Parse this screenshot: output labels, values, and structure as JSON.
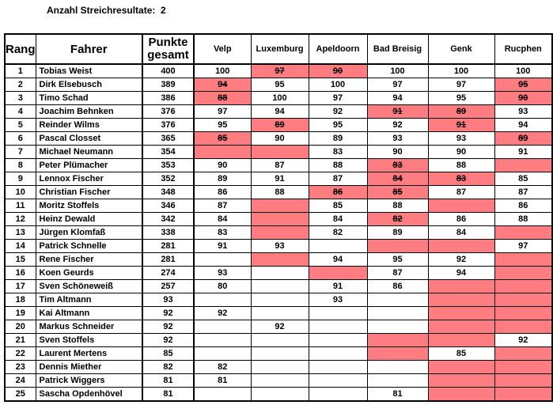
{
  "header": {
    "label": "Anzahl Streichresultate:",
    "value": "2"
  },
  "colors": {
    "highlight": "#FF7C80",
    "border": "#000000",
    "text": "#000000",
    "background": "#FFFFFF"
  },
  "table": {
    "columns": [
      "Rang",
      "Fahrer",
      "Punkte gesamt",
      "Velp",
      "Luxemburg",
      "Apeldoorn",
      "Bad Breisig",
      "Genk",
      "Rucphen"
    ],
    "legend": {
      "ok": "counted result",
      "drop": "dropped result (red, strikethrough)",
      "miss": "missing result (red, empty)",
      "none": "no result (white, empty)"
    },
    "rows": [
      {
        "rang": "1",
        "fahrer": "Tobias Weist",
        "punkte": "400",
        "results": [
          {
            "v": "100",
            "s": "ok"
          },
          {
            "v": "97",
            "s": "drop"
          },
          {
            "v": "90",
            "s": "drop"
          },
          {
            "v": "100",
            "s": "ok"
          },
          {
            "v": "100",
            "s": "ok"
          },
          {
            "v": "100",
            "s": "ok"
          }
        ]
      },
      {
        "rang": "2",
        "fahrer": "Dirk Elsebusch",
        "punkte": "389",
        "results": [
          {
            "v": "94",
            "s": "drop"
          },
          {
            "v": "95",
            "s": "ok"
          },
          {
            "v": "100",
            "s": "ok"
          },
          {
            "v": "97",
            "s": "ok"
          },
          {
            "v": "97",
            "s": "ok"
          },
          {
            "v": "95",
            "s": "drop"
          }
        ]
      },
      {
        "rang": "3",
        "fahrer": "Timo Schad",
        "punkte": "386",
        "results": [
          {
            "v": "88",
            "s": "drop"
          },
          {
            "v": "100",
            "s": "ok"
          },
          {
            "v": "97",
            "s": "ok"
          },
          {
            "v": "94",
            "s": "ok"
          },
          {
            "v": "95",
            "s": "ok"
          },
          {
            "v": "90",
            "s": "drop"
          }
        ]
      },
      {
        "rang": "4",
        "fahrer": "Joachim Behnken",
        "punkte": "376",
        "results": [
          {
            "v": "97",
            "s": "ok"
          },
          {
            "v": "94",
            "s": "ok"
          },
          {
            "v": "92",
            "s": "ok"
          },
          {
            "v": "91",
            "s": "drop"
          },
          {
            "v": "89",
            "s": "drop"
          },
          {
            "v": "93",
            "s": "ok"
          }
        ]
      },
      {
        "rang": "5",
        "fahrer": "Reinder Wilms",
        "punkte": "376",
        "results": [
          {
            "v": "95",
            "s": "ok"
          },
          {
            "v": "89",
            "s": "drop"
          },
          {
            "v": "95",
            "s": "ok"
          },
          {
            "v": "92",
            "s": "ok"
          },
          {
            "v": "91",
            "s": "drop"
          },
          {
            "v": "94",
            "s": "ok"
          }
        ]
      },
      {
        "rang": "6",
        "fahrer": "Pascal Closset",
        "punkte": "365",
        "results": [
          {
            "v": "85",
            "s": "drop"
          },
          {
            "v": "90",
            "s": "ok"
          },
          {
            "v": "89",
            "s": "ok"
          },
          {
            "v": "93",
            "s": "ok"
          },
          {
            "v": "93",
            "s": "ok"
          },
          {
            "v": "89",
            "s": "drop"
          }
        ]
      },
      {
        "rang": "7",
        "fahrer": "Michael Neumann",
        "punkte": "354",
        "results": [
          {
            "v": "",
            "s": "miss"
          },
          {
            "v": "",
            "s": "miss"
          },
          {
            "v": "83",
            "s": "ok"
          },
          {
            "v": "90",
            "s": "ok"
          },
          {
            "v": "90",
            "s": "ok"
          },
          {
            "v": "91",
            "s": "ok"
          }
        ]
      },
      {
        "rang": "8",
        "fahrer": "Peter Plümacher",
        "punkte": "353",
        "results": [
          {
            "v": "90",
            "s": "ok"
          },
          {
            "v": "87",
            "s": "ok"
          },
          {
            "v": "88",
            "s": "ok"
          },
          {
            "v": "83",
            "s": "drop"
          },
          {
            "v": "88",
            "s": "ok"
          },
          {
            "v": "",
            "s": "miss"
          }
        ]
      },
      {
        "rang": "9",
        "fahrer": "Lennox Fischer",
        "punkte": "352",
        "results": [
          {
            "v": "89",
            "s": "ok"
          },
          {
            "v": "91",
            "s": "ok"
          },
          {
            "v": "87",
            "s": "ok"
          },
          {
            "v": "84",
            "s": "drop"
          },
          {
            "v": "83",
            "s": "drop"
          },
          {
            "v": "85",
            "s": "ok"
          }
        ]
      },
      {
        "rang": "10",
        "fahrer": "Christian Fischer",
        "punkte": "348",
        "results": [
          {
            "v": "86",
            "s": "ok"
          },
          {
            "v": "88",
            "s": "ok"
          },
          {
            "v": "86",
            "s": "drop"
          },
          {
            "v": "85",
            "s": "drop"
          },
          {
            "v": "87",
            "s": "ok"
          },
          {
            "v": "87",
            "s": "ok"
          }
        ]
      },
      {
        "rang": "11",
        "fahrer": "Moritz Stoffels",
        "punkte": "346",
        "results": [
          {
            "v": "87",
            "s": "ok"
          },
          {
            "v": "",
            "s": "miss"
          },
          {
            "v": "85",
            "s": "ok"
          },
          {
            "v": "88",
            "s": "ok"
          },
          {
            "v": "",
            "s": "miss"
          },
          {
            "v": "86",
            "s": "ok"
          }
        ]
      },
      {
        "rang": "12",
        "fahrer": "Heinz Dewald",
        "punkte": "342",
        "results": [
          {
            "v": "84",
            "s": "ok"
          },
          {
            "v": "",
            "s": "miss"
          },
          {
            "v": "84",
            "s": "ok"
          },
          {
            "v": "82",
            "s": "drop"
          },
          {
            "v": "86",
            "s": "ok"
          },
          {
            "v": "88",
            "s": "ok"
          }
        ]
      },
      {
        "rang": "13",
        "fahrer": "Jürgen Klomfaß",
        "punkte": "338",
        "results": [
          {
            "v": "83",
            "s": "ok"
          },
          {
            "v": "",
            "s": "miss"
          },
          {
            "v": "82",
            "s": "ok"
          },
          {
            "v": "89",
            "s": "ok"
          },
          {
            "v": "84",
            "s": "ok"
          },
          {
            "v": "",
            "s": "miss"
          }
        ]
      },
      {
        "rang": "14",
        "fahrer": "Patrick Schnelle",
        "punkte": "281",
        "results": [
          {
            "v": "91",
            "s": "ok"
          },
          {
            "v": "93",
            "s": "ok"
          },
          {
            "v": "",
            "s": "none"
          },
          {
            "v": "",
            "s": "miss"
          },
          {
            "v": "",
            "s": "miss"
          },
          {
            "v": "97",
            "s": "ok"
          }
        ]
      },
      {
        "rang": "15",
        "fahrer": "Rene Fischer",
        "punkte": "281",
        "results": [
          {
            "v": "",
            "s": "none"
          },
          {
            "v": "",
            "s": "miss"
          },
          {
            "v": "94",
            "s": "ok"
          },
          {
            "v": "95",
            "s": "ok"
          },
          {
            "v": "92",
            "s": "ok"
          },
          {
            "v": "",
            "s": "miss"
          }
        ]
      },
      {
        "rang": "16",
        "fahrer": "Koen Geurds",
        "punkte": "274",
        "results": [
          {
            "v": "93",
            "s": "ok"
          },
          {
            "v": "",
            "s": "none"
          },
          {
            "v": "",
            "s": "miss"
          },
          {
            "v": "87",
            "s": "ok"
          },
          {
            "v": "94",
            "s": "ok"
          },
          {
            "v": "",
            "s": "miss"
          }
        ]
      },
      {
        "rang": "17",
        "fahrer": "Sven Schöneweiß",
        "punkte": "257",
        "results": [
          {
            "v": "80",
            "s": "ok"
          },
          {
            "v": "",
            "s": "none"
          },
          {
            "v": "91",
            "s": "ok"
          },
          {
            "v": "86",
            "s": "ok"
          },
          {
            "v": "",
            "s": "miss"
          },
          {
            "v": "",
            "s": "miss"
          }
        ]
      },
      {
        "rang": "18",
        "fahrer": "Tim Altmann",
        "punkte": "93",
        "results": [
          {
            "v": "",
            "s": "none"
          },
          {
            "v": "",
            "s": "none"
          },
          {
            "v": "93",
            "s": "ok"
          },
          {
            "v": "",
            "s": "none"
          },
          {
            "v": "",
            "s": "miss"
          },
          {
            "v": "",
            "s": "miss"
          }
        ]
      },
      {
        "rang": "19",
        "fahrer": "Kai Altmann",
        "punkte": "92",
        "results": [
          {
            "v": "92",
            "s": "ok"
          },
          {
            "v": "",
            "s": "none"
          },
          {
            "v": "",
            "s": "none"
          },
          {
            "v": "",
            "s": "none"
          },
          {
            "v": "",
            "s": "miss"
          },
          {
            "v": "",
            "s": "miss"
          }
        ]
      },
      {
        "rang": "20",
        "fahrer": "Markus Schneider",
        "punkte": "92",
        "results": [
          {
            "v": "",
            "s": "none"
          },
          {
            "v": "92",
            "s": "ok"
          },
          {
            "v": "",
            "s": "none"
          },
          {
            "v": "",
            "s": "none"
          },
          {
            "v": "",
            "s": "miss"
          },
          {
            "v": "",
            "s": "miss"
          }
        ]
      },
      {
        "rang": "21",
        "fahrer": "Sven Stoffels",
        "punkte": "92",
        "results": [
          {
            "v": "",
            "s": "none"
          },
          {
            "v": "",
            "s": "none"
          },
          {
            "v": "",
            "s": "none"
          },
          {
            "v": "",
            "s": "miss"
          },
          {
            "v": "",
            "s": "miss"
          },
          {
            "v": "92",
            "s": "ok"
          }
        ]
      },
      {
        "rang": "22",
        "fahrer": "Laurent Mertens",
        "punkte": "85",
        "results": [
          {
            "v": "",
            "s": "none"
          },
          {
            "v": "",
            "s": "none"
          },
          {
            "v": "",
            "s": "none"
          },
          {
            "v": "",
            "s": "miss"
          },
          {
            "v": "85",
            "s": "ok"
          },
          {
            "v": "",
            "s": "miss"
          }
        ]
      },
      {
        "rang": "23",
        "fahrer": "Dennis Miether",
        "punkte": "82",
        "results": [
          {
            "v": "82",
            "s": "ok"
          },
          {
            "v": "",
            "s": "none"
          },
          {
            "v": "",
            "s": "none"
          },
          {
            "v": "",
            "s": "none"
          },
          {
            "v": "",
            "s": "miss"
          },
          {
            "v": "",
            "s": "miss"
          }
        ]
      },
      {
        "rang": "24",
        "fahrer": "Patrick Wiggers",
        "punkte": "81",
        "results": [
          {
            "v": "81",
            "s": "ok"
          },
          {
            "v": "",
            "s": "none"
          },
          {
            "v": "",
            "s": "none"
          },
          {
            "v": "",
            "s": "none"
          },
          {
            "v": "",
            "s": "miss"
          },
          {
            "v": "",
            "s": "miss"
          }
        ]
      },
      {
        "rang": "25",
        "fahrer": "Sascha Opdenhövel",
        "punkte": "81",
        "results": [
          {
            "v": "",
            "s": "none"
          },
          {
            "v": "",
            "s": "none"
          },
          {
            "v": "",
            "s": "none"
          },
          {
            "v": "81",
            "s": "ok"
          },
          {
            "v": "",
            "s": "miss"
          },
          {
            "v": "",
            "s": "miss"
          }
        ]
      }
    ]
  }
}
